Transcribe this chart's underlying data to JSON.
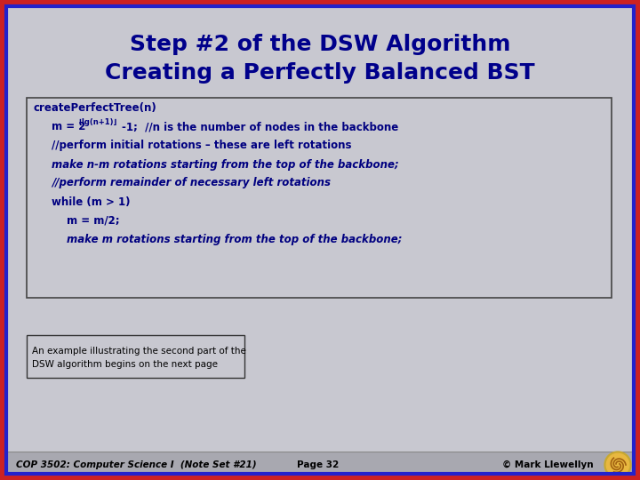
{
  "title1": "Step #2 of the DSW Algorithm",
  "title2": "Creating a Perfectly Balanced BST",
  "bg_color": "#c8c8d0",
  "border_outer_red": "#cc2222",
  "border_outer_blue": "#2222cc",
  "title_color": "#00008B",
  "code_bg": "#c8c8d0",
  "code_border": "#444444",
  "code_text_color": "#000080",
  "note_text": "An example illustrating the second part of the\nDSW algorithm begins on the next page",
  "footer_left": "COP 3502: Computer Science I  (Note Set #21)",
  "footer_center": "Page 32",
  "footer_right": "© Mark Llewellyn",
  "footer_bg": "#a8a8b0",
  "title1_fontsize": 18,
  "title2_fontsize": 18,
  "code_fontsize": 8.5,
  "note_fontsize": 7.5,
  "footer_fontsize": 7.5
}
